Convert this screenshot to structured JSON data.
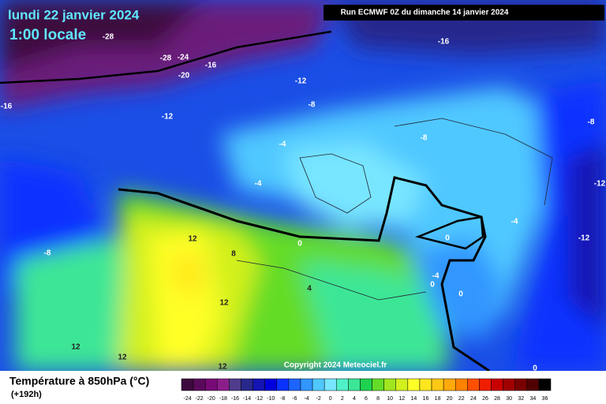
{
  "header": {
    "title": "lundi 22 janvier 2024",
    "subtitle": "1:00 locale",
    "run": "Run ECMWF 0Z du dimanche 14 janvier 2024"
  },
  "map": {
    "contour_labels": [
      -28,
      -28,
      -24,
      -16,
      -20,
      -16,
      -12,
      -16,
      -8,
      -12,
      -8,
      -8,
      -4,
      -4,
      -12,
      -4,
      0,
      -12,
      12,
      8,
      0,
      -8,
      4,
      -4,
      0,
      0,
      12,
      12,
      12,
      12,
      0
    ],
    "copyright": "Copyright 2024 Meteociel.fr"
  },
  "legend": {
    "title": "Température à 850hPa (°C)",
    "lead": "(+192h)",
    "ticks": [
      -24,
      -22,
      -20,
      -18,
      -16,
      -14,
      -12,
      -10,
      -8,
      -6,
      -4,
      -2,
      0,
      2,
      4,
      6,
      8,
      10,
      12,
      14,
      16,
      18,
      20,
      22,
      24,
      26,
      28,
      30,
      32,
      34,
      36
    ],
    "colors": [
      "#3c0a3c",
      "#5a0a5a",
      "#780a78",
      "#8c1e8c",
      "#503c8c",
      "#28288c",
      "#1414b4",
      "#0000dc",
      "#0a32ff",
      "#1e64ff",
      "#3296ff",
      "#50c8ff",
      "#78e6ff",
      "#50f0c8",
      "#3ce696",
      "#1ed250",
      "#64dc28",
      "#a0e61e",
      "#d2f01e",
      "#ffff28",
      "#ffe61e",
      "#ffc814",
      "#ffaa0a",
      "#ff8200",
      "#ff5000",
      "#f01e00",
      "#c80000",
      "#a00000",
      "#780000",
      "#500000",
      "#000000"
    ]
  }
}
